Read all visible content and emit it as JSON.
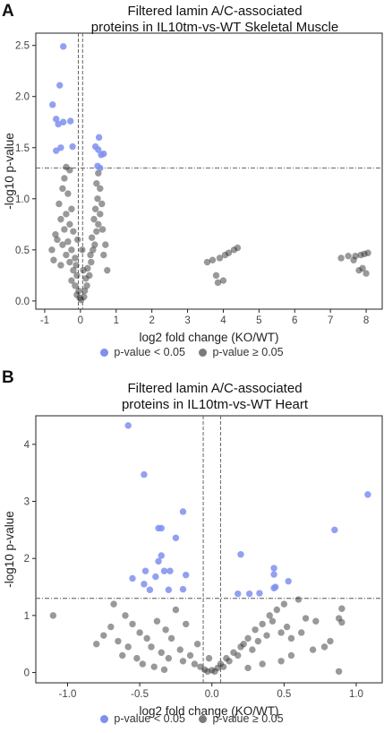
{
  "panels": [
    {
      "letter": "A",
      "title_lines": [
        "Filtered lamin A/C-associated",
        "proteins in IL10tm-vs-WT Skeletal Muscle"
      ],
      "legend": [
        {
          "label": "p-value < 0.05",
          "color": "#7f8fef"
        },
        {
          "label": "p-value ≥ 0.05",
          "color": "#7a7a7a"
        }
      ]
    },
    {
      "letter": "B",
      "title_lines": [
        "Filtered lamin A/C-associated",
        "proteins in IL10tm-vs-WT Heart"
      ],
      "legend": [
        {
          "label": "p-value < 0.05",
          "color": "#7f8fef"
        },
        {
          "label": "p-value ≥ 0.05",
          "color": "#7a7a7a"
        }
      ]
    }
  ],
  "colors": {
    "significant": "#7f8fef",
    "nonsignificant": "#333333"
  },
  "chart_data": [
    {
      "type": "scatter",
      "xlabel": "log2 fold change (KO/WT)",
      "ylabel": "-log10 p-value",
      "xlim": [
        -1.25,
        8.45
      ],
      "ylim": [
        -0.08,
        2.62
      ],
      "xticks": [
        "-1",
        "0",
        "1",
        "2",
        "3",
        "4",
        "5",
        "6",
        "7",
        "8"
      ],
      "xtick_values": [
        -1,
        0,
        1,
        2,
        3,
        4,
        5,
        6,
        7,
        8
      ],
      "yticks": [
        "0.0",
        "0.5",
        "1.0",
        "1.5",
        "2.0",
        "2.5"
      ],
      "ytick_values": [
        0,
        0.5,
        1,
        1.5,
        2,
        2.5
      ],
      "threshold_y": 1.3,
      "vlines_x": [
        -0.06,
        0.06
      ],
      "significant": [
        [
          -0.48,
          2.49
        ],
        [
          -0.58,
          2.11
        ],
        [
          -0.78,
          1.92
        ],
        [
          -0.68,
          1.78
        ],
        [
          -0.48,
          1.75
        ],
        [
          -0.28,
          1.76
        ],
        [
          -0.62,
          1.73
        ],
        [
          -0.55,
          1.5
        ],
        [
          -0.22,
          1.51
        ],
        [
          -0.68,
          1.47
        ],
        [
          0.42,
          1.51
        ],
        [
          0.5,
          1.48
        ],
        [
          0.58,
          1.43
        ],
        [
          0.52,
          1.6
        ],
        [
          0.65,
          1.44
        ],
        [
          0.48,
          1.32
        ],
        [
          0.55,
          1.3
        ]
      ],
      "nonsignificant": [
        [
          -0.4,
          1.31
        ],
        [
          -0.3,
          1.28
        ],
        [
          -0.45,
          1.2
        ],
        [
          -0.5,
          1.1
        ],
        [
          -0.35,
          1.05
        ],
        [
          -0.6,
          0.95
        ],
        [
          -0.25,
          0.9
        ],
        [
          -0.4,
          0.85
        ],
        [
          -0.55,
          0.8
        ],
        [
          -0.3,
          0.75
        ],
        [
          -0.45,
          0.7
        ],
        [
          -0.2,
          0.68
        ],
        [
          -0.65,
          0.6
        ],
        [
          -0.35,
          0.58
        ],
        [
          -0.5,
          0.55
        ],
        [
          -0.25,
          0.5
        ],
        [
          -0.4,
          0.45
        ],
        [
          -0.15,
          0.42
        ],
        [
          -0.3,
          0.38
        ],
        [
          -0.55,
          0.35
        ],
        [
          -0.2,
          0.3
        ],
        [
          -0.1,
          0.25
        ],
        [
          -0.25,
          0.2
        ],
        [
          -0.15,
          0.15
        ],
        [
          -0.05,
          0.1
        ],
        [
          -0.1,
          0.06
        ],
        [
          -0.02,
          0.03
        ],
        [
          0.02,
          0.01
        ],
        [
          -0.75,
          0.4
        ],
        [
          -0.8,
          0.5
        ],
        [
          -0.7,
          0.65
        ],
        [
          0.1,
          0.04
        ],
        [
          0.12,
          0.1
        ],
        [
          0.18,
          0.15
        ],
        [
          0.15,
          0.22
        ],
        [
          0.25,
          0.25
        ],
        [
          0.2,
          0.32
        ],
        [
          0.3,
          0.38
        ],
        [
          0.28,
          0.45
        ],
        [
          0.35,
          0.5
        ],
        [
          0.4,
          0.55
        ],
        [
          0.32,
          0.62
        ],
        [
          0.45,
          0.68
        ],
        [
          0.5,
          0.75
        ],
        [
          0.38,
          0.8
        ],
        [
          0.55,
          0.85
        ],
        [
          0.42,
          0.9
        ],
        [
          0.6,
          0.95
        ],
        [
          0.48,
          1.0
        ],
        [
          0.55,
          1.1
        ],
        [
          0.45,
          1.15
        ],
        [
          0.5,
          1.25
        ],
        [
          0.62,
          0.7
        ],
        [
          0.7,
          0.55
        ],
        [
          0.65,
          0.45
        ],
        [
          0.75,
          0.3
        ],
        [
          0.05,
          0.5
        ],
        [
          -0.08,
          0.6
        ],
        [
          -0.12,
          0.35
        ],
        [
          0.08,
          0.3
        ],
        [
          3.55,
          0.38
        ],
        [
          3.7,
          0.4
        ],
        [
          3.8,
          0.25
        ],
        [
          3.9,
          0.42
        ],
        [
          4.05,
          0.45
        ],
        [
          4.15,
          0.47
        ],
        [
          4.3,
          0.5
        ],
        [
          4.4,
          0.52
        ],
        [
          3.85,
          0.18
        ],
        [
          4.0,
          0.2
        ],
        [
          7.3,
          0.42
        ],
        [
          7.5,
          0.44
        ],
        [
          7.7,
          0.44
        ],
        [
          7.85,
          0.45
        ],
        [
          7.95,
          0.46
        ],
        [
          8.05,
          0.47
        ],
        [
          7.65,
          0.4
        ],
        [
          7.8,
          0.3
        ],
        [
          8.0,
          0.27
        ],
        [
          7.9,
          0.32
        ]
      ]
    },
    {
      "type": "scatter",
      "xlabel": "log2 fold change (KO/WT)",
      "ylabel": "-log10 p-value",
      "xlim": [
        -1.22,
        1.18
      ],
      "ylim": [
        -0.18,
        4.5
      ],
      "xticks": [
        "-1.0",
        "-0.5",
        "0.0",
        "0.5",
        "1.0"
      ],
      "xtick_values": [
        -1,
        -0.5,
        0,
        0.5,
        1
      ],
      "yticks": [
        "0",
        "1",
        "2",
        "3",
        "4"
      ],
      "ytick_values": [
        0,
        1,
        2,
        3,
        4
      ],
      "threshold_y": 1.3,
      "vlines_x": [
        -0.06,
        0.06
      ],
      "significant": [
        [
          -0.58,
          4.33
        ],
        [
          -0.47,
          3.47
        ],
        [
          -0.37,
          2.53
        ],
        [
          -0.35,
          2.53
        ],
        [
          -0.2,
          2.82
        ],
        [
          -0.25,
          2.36
        ],
        [
          -0.35,
          2.05
        ],
        [
          -0.37,
          1.95
        ],
        [
          -0.46,
          1.78
        ],
        [
          -0.33,
          1.78
        ],
        [
          -0.29,
          1.78
        ],
        [
          -0.39,
          1.68
        ],
        [
          -0.18,
          1.71
        ],
        [
          -0.47,
          1.55
        ],
        [
          -0.43,
          1.45
        ],
        [
          -0.3,
          1.45
        ],
        [
          -0.2,
          1.46
        ],
        [
          -0.55,
          1.65
        ],
        [
          0.2,
          2.07
        ],
        [
          0.18,
          1.38
        ],
        [
          0.26,
          1.38
        ],
        [
          0.33,
          1.39
        ],
        [
          0.43,
          1.83
        ],
        [
          0.43,
          1.72
        ],
        [
          0.44,
          1.5
        ],
        [
          0.43,
          1.48
        ],
        [
          0.53,
          1.6
        ],
        [
          0.85,
          2.5
        ],
        [
          1.08,
          3.12
        ]
      ],
      "nonsignificant": [
        [
          -1.1,
          1.0
        ],
        [
          -0.68,
          1.2
        ],
        [
          -0.6,
          1.0
        ],
        [
          -0.55,
          0.85
        ],
        [
          -0.5,
          0.7
        ],
        [
          -0.45,
          0.6
        ],
        [
          -0.42,
          0.45
        ],
        [
          -0.38,
          0.9
        ],
        [
          -0.35,
          0.35
        ],
        [
          -0.32,
          0.75
        ],
        [
          -0.3,
          0.25
        ],
        [
          -0.28,
          0.6
        ],
        [
          -0.25,
          1.1
        ],
        [
          -0.22,
          0.4
        ],
        [
          -0.2,
          0.2
        ],
        [
          -0.18,
          0.85
        ],
        [
          -0.15,
          0.3
        ],
        [
          -0.12,
          0.15
        ],
        [
          -0.1,
          0.5
        ],
        [
          -0.08,
          0.1
        ],
        [
          -0.05,
          0.05
        ],
        [
          -0.03,
          0.02
        ],
        [
          -0.02,
          0.25
        ],
        [
          0.0,
          0.04
        ],
        [
          0.02,
          0.02
        ],
        [
          0.04,
          0.08
        ],
        [
          0.06,
          0.15
        ],
        [
          0.08,
          0.1
        ],
        [
          0.1,
          0.25
        ],
        [
          0.12,
          0.2
        ],
        [
          0.15,
          0.35
        ],
        [
          0.18,
          0.3
        ],
        [
          0.2,
          0.45
        ],
        [
          0.22,
          0.5
        ],
        [
          0.25,
          0.6
        ],
        [
          0.28,
          0.4
        ],
        [
          0.3,
          0.75
        ],
        [
          0.32,
          0.55
        ],
        [
          0.35,
          0.85
        ],
        [
          0.38,
          0.65
        ],
        [
          0.4,
          1.0
        ],
        [
          0.42,
          0.9
        ],
        [
          0.45,
          1.1
        ],
        [
          0.48,
          0.7
        ],
        [
          0.5,
          1.2
        ],
        [
          0.52,
          0.8
        ],
        [
          0.55,
          0.6
        ],
        [
          0.6,
          1.28
        ],
        [
          0.65,
          0.95
        ],
        [
          0.72,
          0.9
        ],
        [
          0.78,
          0.45
        ],
        [
          0.82,
          0.55
        ],
        [
          0.88,
          0.95
        ],
        [
          0.9,
          1.12
        ],
        [
          0.9,
          0.88
        ],
        [
          0.88,
          0.02
        ],
        [
          -0.65,
          0.55
        ],
        [
          -0.62,
          0.3
        ],
        [
          -0.58,
          0.45
        ],
        [
          -0.52,
          0.25
        ],
        [
          -0.48,
          0.15
        ],
        [
          -0.4,
          0.1
        ],
        [
          -0.33,
          0.05
        ],
        [
          -0.7,
          0.8
        ],
        [
          -0.75,
          0.65
        ],
        [
          -0.8,
          0.5
        ],
        [
          0.55,
          0.3
        ],
        [
          0.48,
          0.2
        ],
        [
          0.62,
          0.7
        ],
        [
          0.7,
          0.4
        ],
        [
          0.35,
          0.15
        ],
        [
          0.25,
          0.08
        ]
      ]
    }
  ]
}
